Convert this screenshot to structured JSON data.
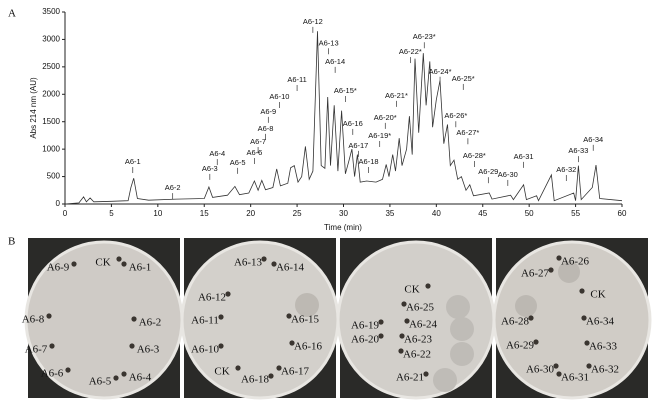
{
  "chart_data": {
    "type": "line",
    "panel_label": "A",
    "xlabel": "Time (min)",
    "ylabel": "Abs 214 nm (AU)",
    "color": "#333333",
    "x": [
      0,
      1.5,
      2,
      2.3,
      2.7,
      3.1,
      5,
      6.8,
      7.1,
      7.4,
      7.8,
      9,
      12,
      15,
      15.5,
      15.9,
      17.5,
      18.3,
      18.8,
      19.8,
      20.4,
      20.8,
      21.2,
      21.6,
      22.4,
      22.8,
      23.2,
      24,
      24.3,
      24.7,
      25.1,
      25.5,
      25.9,
      26.3,
      26.7,
      27.2,
      27.6,
      28,
      28.3,
      28.6,
      29,
      29.4,
      29.8,
      30.2,
      30.6,
      30.9,
      31.2,
      31.5,
      31.8,
      32.5,
      33.5,
      34.2,
      34.6,
      34.9,
      35.3,
      35.6,
      36,
      36.3,
      36.8,
      37.1,
      37.4,
      37.7,
      38.1,
      38.6,
      38.9,
      39.3,
      39.6,
      40,
      40.4,
      40.8,
      41.2,
      41.5,
      41.9,
      42.3,
      42.7,
      43.2,
      43.6,
      44,
      45.7,
      46,
      48,
      48.3,
      49.4,
      49.7,
      50.8,
      51,
      52.4,
      52.7,
      54.8,
      55,
      55.3,
      55.6,
      56.8,
      57.2,
      57.6,
      60
    ],
    "values": [
      0,
      20,
      130,
      40,
      110,
      40,
      50,
      60,
      300,
      470,
      100,
      70,
      90,
      100,
      310,
      120,
      160,
      320,
      170,
      200,
      420,
      250,
      430,
      260,
      300,
      640,
      330,
      380,
      660,
      700,
      400,
      500,
      1050,
      450,
      600,
      3150,
      700,
      650,
      1950,
      700,
      1800,
      600,
      1700,
      550,
      800,
      1000,
      500,
      900,
      400,
      420,
      400,
      450,
      720,
      500,
      900,
      600,
      1200,
      700,
      1000,
      1600,
      900,
      2650,
      1300,
      2750,
      1800,
      2600,
      1400,
      1900,
      2250,
      1100,
      1450,
      700,
      800,
      450,
      500,
      250,
      350,
      150,
      200,
      90,
      160,
      80,
      350,
      80,
      150,
      60,
      530,
      60,
      200,
      60,
      700,
      80,
      300,
      710,
      100,
      60
    ],
    "xlim": [
      0,
      60
    ],
    "xticks": [
      0,
      5,
      10,
      15,
      20,
      25,
      30,
      35,
      40,
      45,
      50,
      55,
      60
    ],
    "ylim": [
      0,
      3500
    ],
    "yticks": [
      0,
      500,
      1000,
      1500,
      2000,
      2500,
      3000,
      3500
    ],
    "annotations": [
      {
        "text": "A6-1",
        "x": 7.3,
        "y": 765
      },
      {
        "text": "A6-2",
        "x": 11.6,
        "y": 290
      },
      {
        "text": "A6-3",
        "x": 15.6,
        "y": 640
      },
      {
        "text": "A6-4",
        "x": 16.4,
        "y": 910
      },
      {
        "text": "A6-5",
        "x": 18.6,
        "y": 750
      },
      {
        "text": "A6-6",
        "x": 20.4,
        "y": 930
      },
      {
        "text": "A6-7",
        "x": 20.8,
        "y": 1130
      },
      {
        "text": "A6-8",
        "x": 21.6,
        "y": 1370
      },
      {
        "text": "A6-9",
        "x": 21.9,
        "y": 1680
      },
      {
        "text": "A6-10",
        "x": 23.1,
        "y": 1950
      },
      {
        "text": "A6-11",
        "x": 25.0,
        "y": 2260
      },
      {
        "text": "A6-12",
        "x": 26.7,
        "y": 3320
      },
      {
        "text": "A6-13",
        "x": 28.4,
        "y": 2930
      },
      {
        "text": "A6-14",
        "x": 29.1,
        "y": 2590
      },
      {
        "text": "A6-15*",
        "x": 30.2,
        "y": 2060
      },
      {
        "text": "A6-16",
        "x": 31.0,
        "y": 1460
      },
      {
        "text": "A6-17",
        "x": 31.6,
        "y": 1060
      },
      {
        "text": "A6-18",
        "x": 32.7,
        "y": 765
      },
      {
        "text": "A6-19*",
        "x": 33.9,
        "y": 1240
      },
      {
        "text": "A6-20*",
        "x": 34.5,
        "y": 1570
      },
      {
        "text": "A6-21*",
        "x": 35.7,
        "y": 1970
      },
      {
        "text": "A6-22*",
        "x": 37.2,
        "y": 2770
      },
      {
        "text": "A6-23*",
        "x": 38.7,
        "y": 3040
      },
      {
        "text": "A6-24*",
        "x": 40.4,
        "y": 2410
      },
      {
        "text": "A6-25*",
        "x": 42.9,
        "y": 2280
      },
      {
        "text": "A6-26*",
        "x": 42.1,
        "y": 1600
      },
      {
        "text": "A6-27*",
        "x": 43.4,
        "y": 1290
      },
      {
        "text": "A6-28*",
        "x": 44.1,
        "y": 875
      },
      {
        "text": "A6-29",
        "x": 45.6,
        "y": 580
      },
      {
        "text": "A6-30",
        "x": 47.7,
        "y": 530
      },
      {
        "text": "A6-31",
        "x": 49.4,
        "y": 860
      },
      {
        "text": "A6-32",
        "x": 54.0,
        "y": 620
      },
      {
        "text": "A6-33",
        "x": 55.3,
        "y": 965
      },
      {
        "text": "A6-34",
        "x": 56.9,
        "y": 1170
      }
    ]
  },
  "panel_b": {
    "label": "B",
    "plates": [
      {
        "labels": [
          "A6-9",
          "CK",
          "A6-1",
          "A6-8",
          "A6-2",
          "A6-7",
          "A6-3",
          "A6-6",
          "A6-5",
          "A6-4"
        ]
      },
      {
        "labels": [
          "A6-12",
          "A6-13",
          "A6-14",
          "A6-11",
          "A6-15",
          "A6-10",
          "A6-16",
          "CK",
          "A6-18",
          "A6-17"
        ]
      },
      {
        "labels": [
          "CK",
          "A6-25",
          "A6-24",
          "A6-23",
          "A6-22",
          "A6-21",
          "A6-19",
          "A6-20"
        ]
      },
      {
        "labels": [
          "A6-26",
          "A6-27",
          "CK",
          "A6-28",
          "A6-34",
          "A6-29",
          "A6-33",
          "A6-30",
          "A6-31",
          "A6-32"
        ]
      }
    ]
  }
}
